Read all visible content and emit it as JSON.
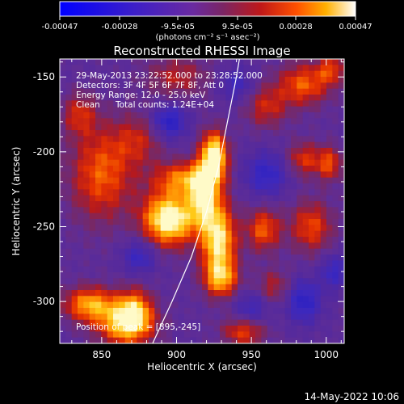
{
  "chart_data": {
    "type": "heatmap",
    "title": "Reconstructed RHESSI Image",
    "xlabel": "Heliocentric X (arcsec)",
    "ylabel": "Heliocentric Y (arcsec)",
    "xlim": [
      822,
      1012
    ],
    "ylim": [
      -328,
      -138
    ],
    "xticks": [
      850,
      900,
      950,
      1000
    ],
    "yticks": [
      -300,
      -250,
      -200,
      -150
    ],
    "colorbar": {
      "ticks": [
        "-0.00047",
        "-0.00028",
        "-9.5e-05",
        "9.5e-05",
        "0.00028",
        "0.00047"
      ],
      "tick_values": [
        -0.00047,
        -0.00028,
        -9.5e-05,
        9.5e-05,
        0.00028,
        0.00047
      ],
      "range": [
        -0.00047,
        0.00047
      ],
      "unit_label": "(photons cm⁻² s⁻¹ asec⁻²)"
    },
    "annotations": {
      "time": "29-May-2013 23:22:52.000 to 23:28:52.000",
      "detectors": "Detectors: 3F 4F 5F 6F 7F 8F, Att 0",
      "energy": "Energy Range: 12.0 - 25.0 keV",
      "method": "Clean",
      "counts": "Total counts: 1.24E+04",
      "peak": "Position of peak = [895,-245]"
    },
    "sources": [
      {
        "x": 895,
        "y": -245,
        "amp": 1.0,
        "sx": 12,
        "sy": 12
      },
      {
        "x": 925,
        "y": -203,
        "amp": 1.0,
        "sx": 6,
        "sy": 11
      },
      {
        "x": 928,
        "y": -260,
        "amp": 0.85,
        "sx": 8,
        "sy": 18
      },
      {
        "x": 918,
        "y": -230,
        "amp": 0.7,
        "sx": 7,
        "sy": 14
      },
      {
        "x": 905,
        "y": -218,
        "amp": 0.55,
        "sx": 14,
        "sy": 8
      },
      {
        "x": 842,
        "y": -302,
        "amp": 0.65,
        "sx": 12,
        "sy": 8
      },
      {
        "x": 866,
        "y": -315,
        "amp": 0.75,
        "sx": 13,
        "sy": 10
      },
      {
        "x": 872,
        "y": -305,
        "amp": 0.5,
        "sx": 8,
        "sy": 10
      },
      {
        "x": 850,
        "y": -215,
        "amp": 0.5,
        "sx": 15,
        "sy": 22
      },
      {
        "x": 875,
        "y": -192,
        "amp": 0.3,
        "sx": 12,
        "sy": 12
      },
      {
        "x": 835,
        "y": -175,
        "amp": 0.35,
        "sx": 8,
        "sy": 10
      },
      {
        "x": 900,
        "y": -150,
        "amp": 0.3,
        "sx": 15,
        "sy": 10
      },
      {
        "x": 945,
        "y": -320,
        "amp": 0.45,
        "sx": 10,
        "sy": 7
      },
      {
        "x": 958,
        "y": -252,
        "amp": 0.5,
        "sx": 8,
        "sy": 10
      },
      {
        "x": 990,
        "y": -250,
        "amp": 0.45,
        "sx": 10,
        "sy": 12
      },
      {
        "x": 985,
        "y": -205,
        "amp": 0.4,
        "sx": 8,
        "sy": 8
      },
      {
        "x": 1002,
        "y": -208,
        "amp": 0.45,
        "sx": 6,
        "sy": 8
      },
      {
        "x": 985,
        "y": -155,
        "amp": 0.5,
        "sx": 12,
        "sy": 10
      },
      {
        "x": 1003,
        "y": -145,
        "amp": 0.4,
        "sx": 6,
        "sy": 7
      },
      {
        "x": 960,
        "y": -170,
        "amp": 0.35,
        "sx": 10,
        "sy": 10
      },
      {
        "x": 930,
        "y": -285,
        "amp": 0.5,
        "sx": 8,
        "sy": 8
      },
      {
        "x": 965,
        "y": -290,
        "amp": 0.3,
        "sx": 8,
        "sy": 8
      }
    ],
    "negatives": [
      {
        "x": 895,
        "y": -180,
        "amp": 0.5,
        "sx": 8,
        "sy": 8
      },
      {
        "x": 960,
        "y": -215,
        "amp": 0.4,
        "sx": 10,
        "sy": 10
      },
      {
        "x": 985,
        "y": -300,
        "amp": 0.45,
        "sx": 8,
        "sy": 10
      },
      {
        "x": 950,
        "y": -305,
        "amp": 0.3,
        "sx": 8,
        "sy": 8
      },
      {
        "x": 875,
        "y": -270,
        "amp": 0.35,
        "sx": 8,
        "sy": 8
      },
      {
        "x": 940,
        "y": -155,
        "amp": 0.3,
        "sx": 8,
        "sy": 8
      },
      {
        "x": 1005,
        "y": -280,
        "amp": 0.35,
        "sx": 6,
        "sy": 8
      }
    ],
    "limb_curve": [
      [
        884,
        -328
      ],
      [
        897,
        -300
      ],
      [
        910,
        -270
      ],
      [
        920,
        -240
      ],
      [
        928,
        -210
      ],
      [
        934,
        -180
      ],
      [
        940,
        -150
      ],
      [
        942,
        -138
      ]
    ]
  },
  "footer": {
    "timestamp": "14-May-2022 10:06"
  }
}
